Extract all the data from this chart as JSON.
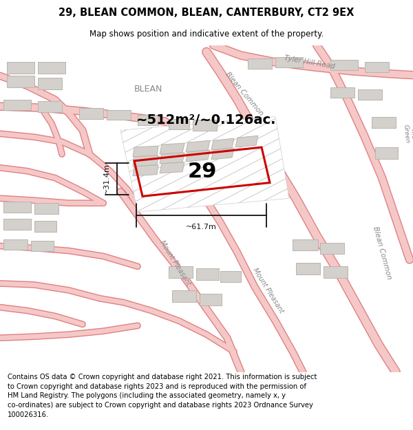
{
  "title": "29, BLEAN COMMON, BLEAN, CANTERBURY, CT2 9EX",
  "subtitle": "Map shows position and indicative extent of the property.",
  "footer": "Contains OS data © Crown copyright and database right 2021. This information is subject\nto Crown copyright and database rights 2023 and is reproduced with the permission of\nHM Land Registry. The polygons (including the associated geometry, namely x, y\nco-ordinates) are subject to Crown copyright and database rights 2023 Ordnance Survey\n100026316.",
  "area_label": "~512m²/~0.126ac.",
  "width_label": "~61.7m",
  "height_label": "~31.4m",
  "property_number": "29",
  "map_bg": "#f0efee",
  "road_fill": "#f5c8c8",
  "road_edge": "#e08080",
  "building_fill": "#d4d0cc",
  "building_edge": "#b8b4b0",
  "highlight_color": "#cc0000",
  "label_color": "#888888",
  "dim_color": "#111111",
  "title_fontsize": 10.5,
  "subtitle_fontsize": 8.5,
  "footer_fontsize": 7.2,
  "area_fontsize": 14,
  "propnum_fontsize": 22,
  "dim_fontsize": 8
}
